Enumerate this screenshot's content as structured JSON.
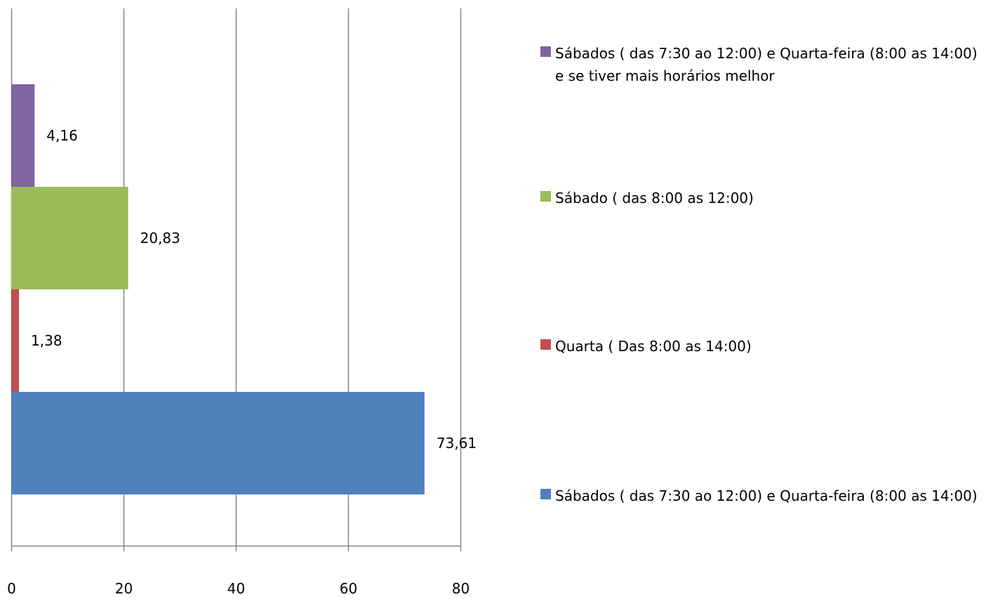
{
  "chart_data": {
    "type": "bar",
    "orientation": "horizontal",
    "title": "",
    "xlabel": "",
    "ylabel": "",
    "xlim": [
      0,
      80
    ],
    "x_ticks": [
      "0",
      "20",
      "40",
      "60",
      "80"
    ],
    "grid": true,
    "legend_position": "right",
    "series": [
      {
        "name": "Sábados ( das 7:30 ao 12:00) e Quarta-feira (8:00 as 14:00)",
        "value": 73.61,
        "label": "73,61",
        "color": "#4F81BD"
      },
      {
        "name": "Quarta ( Das 8:00 as 14:00)",
        "value": 1.38,
        "label": "1,38",
        "color": "#C0504D"
      },
      {
        "name": "Sábado ( das 8:00 as 12:00)",
        "value": 20.83,
        "label": "20,83",
        "color": "#9BBB59"
      },
      {
        "name": "Sábados ( das 7:30 ao 12:00) e Quarta-feira (8:00 as 14:00) e se tiver mais horários melhor",
        "value": 4.16,
        "label": "4,16",
        "color": "#8064A2"
      }
    ]
  }
}
